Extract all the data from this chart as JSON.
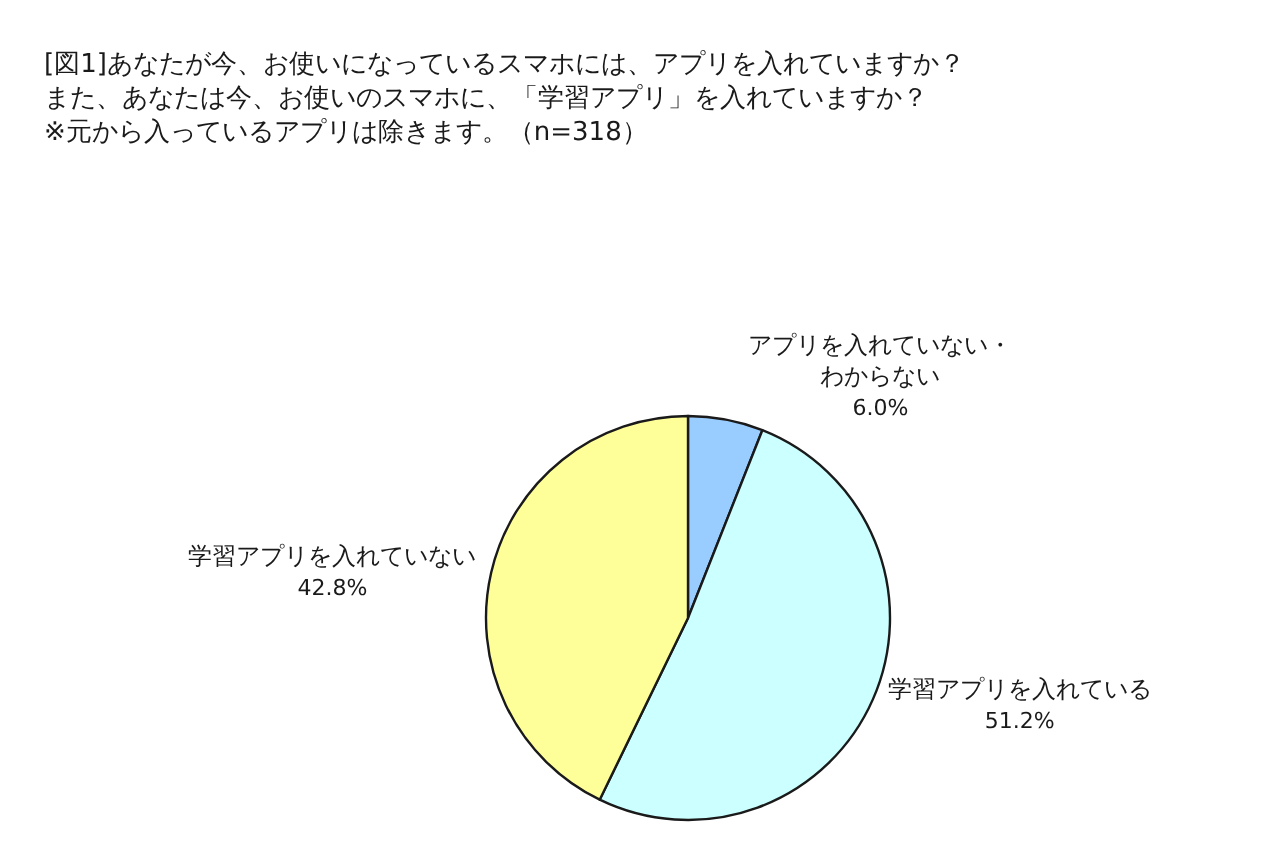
{
  "chart_data": {
    "type": "pie",
    "title": "[図1]あなたが今、お使いになっているスマホには、アプリを入れていますか？また、あなたは今、お使いのスマホに、「学習アプリ」を入れていますか？※元から入っているアプリは除きます。（n=318）",
    "categories": [
      "アプリを入れていない・わからない",
      "学習アプリを入れている",
      "学習アプリを入れていない"
    ],
    "values": [
      6.0,
      51.2,
      42.8
    ],
    "value_labels": [
      "6.0%",
      "51.2%",
      "42.8%"
    ],
    "colors": [
      "#99ccff",
      "#ccffff",
      "#ffff99"
    ]
  }
}
